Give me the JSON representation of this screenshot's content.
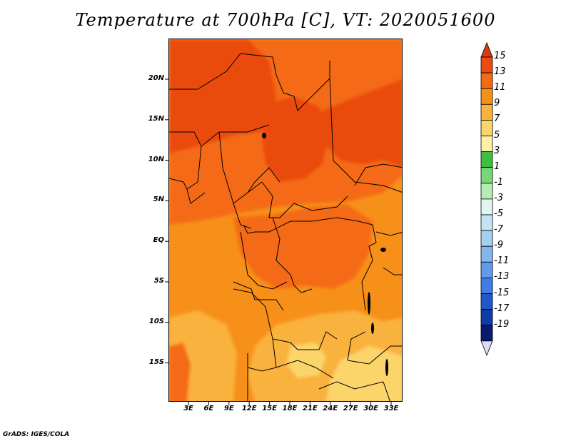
{
  "title": "Temperature at 700hPa [C], VT: 2020051600",
  "credit": "GrADS: IGES/COLA",
  "lat_labels": [
    "20N",
    "15N",
    "10N",
    "5N",
    "EQ",
    "5S",
    "10S",
    "15S"
  ],
  "lon_labels": [
    "3E",
    "6E",
    "9E",
    "12E",
    "15E",
    "18E",
    "21E",
    "24E",
    "27E",
    "30E",
    "33E"
  ],
  "colorbar": {
    "levels": [
      "15",
      "13",
      "11",
      "9",
      "7",
      "5",
      "3",
      "1",
      "-1",
      "-3",
      "-5",
      "-7",
      "-9",
      "-11",
      "-13",
      "-15",
      "-17",
      "-19"
    ],
    "colors": [
      "#d93a0f",
      "#ea4b0f",
      "#f56b12",
      "#f79019",
      "#f9b23d",
      "#fbd56a",
      "#fdf1a8",
      "#3fbf3f",
      "#78d878",
      "#b4ecb4",
      "#e2f5f5",
      "#c4e4f4",
      "#a3d0f1",
      "#83b7ee",
      "#5f9bea",
      "#3e7ee2",
      "#2057c9",
      "#113ba5",
      "#071a70",
      "#dcdcf6"
    ]
  }
}
